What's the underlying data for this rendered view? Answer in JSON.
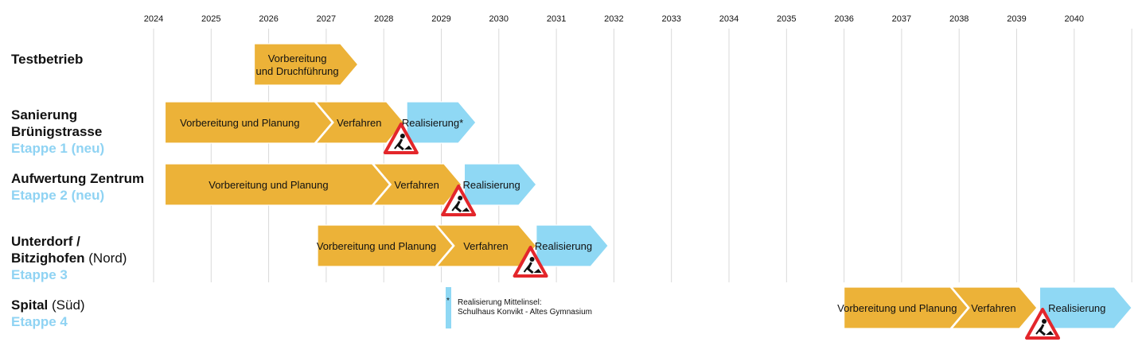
{
  "colors": {
    "phase_planning": "#ecb238",
    "phase_realization": "#8fd8f4",
    "grid": "#d9d9d9",
    "stage_label": "#8fd3f3",
    "warning_red": "#e3262b"
  },
  "chart_data": {
    "type": "gantt",
    "years": [
      "2024",
      "2025",
      "2026",
      "2027",
      "2028",
      "2029",
      "2030",
      "2031",
      "2032",
      "2033",
      "2034",
      "2035",
      "2036",
      "2037",
      "2038",
      "2039",
      "2040"
    ],
    "rows": [
      {
        "label_bold": "Testbetrieb",
        "label_normal": "",
        "label_line2_bold": "",
        "label_line2_normal": "",
        "stage": "",
        "phases": [
          {
            "text": [
              "Vorbereitung",
              "und Druchführung"
            ],
            "start": 2025.75,
            "end": 2027.55,
            "kind": "planning"
          }
        ],
        "warning_at": null
      },
      {
        "label_bold": "Sanierung",
        "label_normal": "",
        "label_line2_bold": "Brünigstrasse",
        "label_line2_normal": "",
        "stage": "Etappe 1 (neu)",
        "phases": [
          {
            "text": [
              "Vorbereitung und Planung"
            ],
            "start": 2024.2,
            "end": 2027.1,
            "kind": "planning"
          },
          {
            "text": [
              "Verfahren"
            ],
            "start": 2027.1,
            "end": 2028.35,
            "kind": "planning"
          },
          {
            "text": [
              "Realisierung*"
            ],
            "start": 2028.4,
            "end": 2029.6,
            "kind": "realization"
          }
        ],
        "warning_at": 2028.3
      },
      {
        "label_bold": "Aufwertung Zentrum",
        "label_normal": "",
        "label_line2_bold": "",
        "label_line2_normal": "",
        "stage": "Etappe 2 (neu)",
        "phases": [
          {
            "text": [
              "Vorbereitung und Planung"
            ],
            "start": 2024.2,
            "end": 2028.1,
            "kind": "planning"
          },
          {
            "text": [
              "Verfahren"
            ],
            "start": 2028.1,
            "end": 2029.35,
            "kind": "planning"
          },
          {
            "text": [
              "Realisierung"
            ],
            "start": 2029.4,
            "end": 2030.65,
            "kind": "realization"
          }
        ],
        "warning_at": 2029.3
      },
      {
        "label_bold": "Unterdorf /",
        "label_normal": "",
        "label_line2_bold": "Bitzighofen",
        "label_line2_normal": " (Nord)",
        "stage": "Etappe 3",
        "phases": [
          {
            "text": [
              "Vorbereitung und Planung"
            ],
            "start": 2026.85,
            "end": 2029.2,
            "kind": "planning"
          },
          {
            "text": [
              "Verfahren"
            ],
            "start": 2029.2,
            "end": 2030.65,
            "kind": "planning"
          },
          {
            "text": [
              "Realisierung"
            ],
            "start": 2030.65,
            "end": 2031.9,
            "kind": "realization"
          }
        ],
        "warning_at": 2030.55
      },
      {
        "label_bold": "Spital",
        "label_normal": " (Süd)",
        "label_line2_bold": "",
        "label_line2_normal": "",
        "stage": "Etappe 4",
        "phases": [
          {
            "text": [
              "Vorbereitung und Planung"
            ],
            "start": 2036.0,
            "end": 2038.15,
            "kind": "planning"
          },
          {
            "text": [
              "Verfahren"
            ],
            "start": 2038.15,
            "end": 2039.35,
            "kind": "planning"
          },
          {
            "text": [
              "Realisierung"
            ],
            "start": 2039.4,
            "end": 2041.0,
            "kind": "realization"
          }
        ],
        "warning_at": 2039.45
      }
    ],
    "footnote_star": "*",
    "footnote_lines": [
      "Realisierung Mittelinsel:",
      "Schulhaus Konvikt - Altes Gymnasium"
    ]
  }
}
